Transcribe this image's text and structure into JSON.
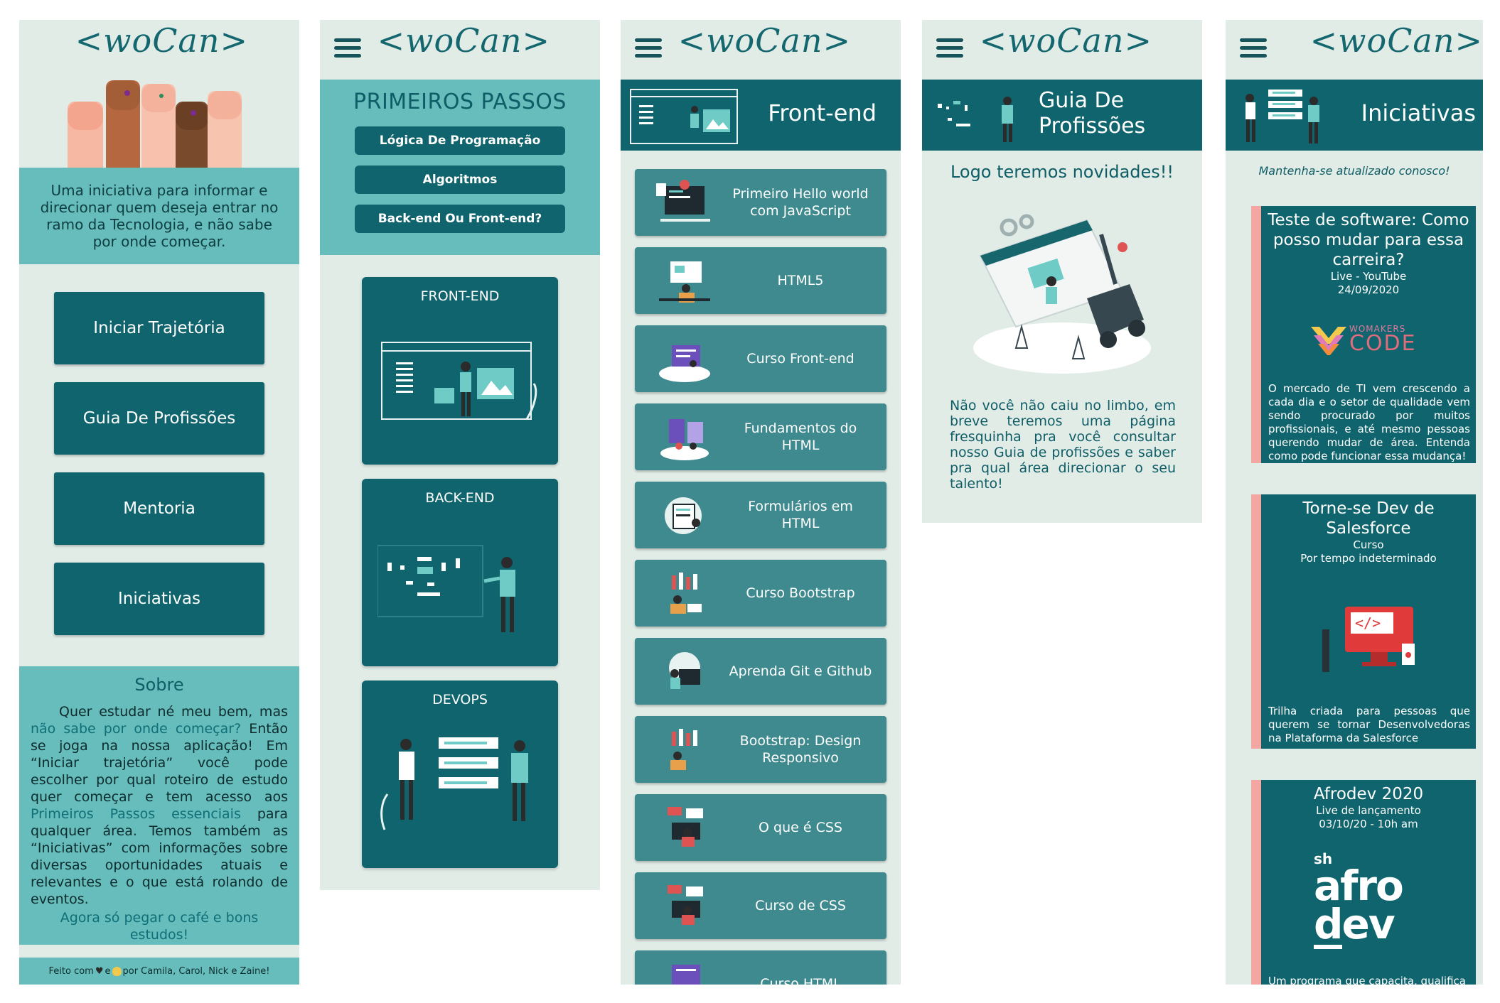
{
  "brand": {
    "logo": "<woCan>"
  },
  "home": {
    "intro": "Uma iniciativa para informar e direcionar quem deseja entrar no ramo da Tecnologia, e não sabe por onde começar.",
    "nav": [
      "Iniciar Trajetória",
      "Guia De Profissões",
      "Mentoria",
      "Iniciativas"
    ],
    "sobre": {
      "title": "Sobre",
      "t1": "Quer estudar né meu bem, mas ",
      "h1": "não sabe por onde começar?",
      "t2": " Então se joga na nossa aplicação! Em “Iniciar trajetória” você pode escolher por qual roteiro de estudo quer começar e tem acesso aos ",
      "h2": "Primeiros Passos essenciais",
      "t3": " para qualquer área. Temos também as “Iniciativas” com informações sobre diversas oportunidades atuais e relevantes e o que está rolando de eventos.",
      "closing": "Agora só pegar o café e bons estudos!"
    },
    "footer": {
      "pre": "Feito com ",
      "mid": " e ",
      "post": " por Camila, Carol, Nick e Zaine!"
    }
  },
  "trajetoria": {
    "title": "PRIMEIROS PASSOS",
    "buttons": [
      "Lógica De Programação",
      "Algoritmos",
      "Back-end Ou Front-end?"
    ],
    "cards": [
      "FRONT-END",
      "BACK-END",
      "DEVOPS"
    ]
  },
  "frontend": {
    "title": "Front-end",
    "items": [
      "Primeiro Hello world com JavaScript",
      "HTML5",
      "Curso Front-end",
      "Fundamentos do HTML",
      "Formulários em HTML",
      "Curso Bootstrap",
      "Aprenda Git e Github",
      "Bootstrap: Design Responsivo",
      "O que é CSS",
      "Curso de CSS",
      "Curso HTML"
    ]
  },
  "guia": {
    "title": "Guia De Profissões",
    "headline": "Logo teremos novidades!!",
    "message": "Não você não caiu no limbo, em breve teremos uma página fresquinha pra você consultar nosso Guia de profissões e saber pra qual área direcionar o seu talento!"
  },
  "iniciativas": {
    "title": "Iniciativas",
    "subtitle": "Mantenha-se atualizado conosco!",
    "cards": [
      {
        "title": "Teste de software: Como posso mudar para essa carreira?",
        "meta1": "Live - YouTube",
        "meta2": "24/09/2020",
        "logo_top": "WOMAKERS",
        "logo_bottom": "CODE",
        "desc": "O mercado de TI vem crescendo a cada dia e o setor de qualidade vem sendo procurado por muitos profissionais, e até mesmo pessoas querendo mudar de área. Entenda como pode funcionar essa mudança!"
      },
      {
        "title": "Torne-se Dev de Salesforce",
        "meta1": "Curso",
        "meta2": "Por tempo indeterminado",
        "desc": "Trilha criada para pessoas que querem se tornar Desenvolvedoras na Plataforma da Salesforce"
      },
      {
        "title": "Afrodev 2020",
        "meta1": "Live de lançamento",
        "meta2": "03/10/20 - 10h am",
        "logo_top": "sh",
        "logo_l1": "afro",
        "logo_l2": "dev",
        "desc": "Um programa que capacita, qualifica"
      }
    ]
  }
}
